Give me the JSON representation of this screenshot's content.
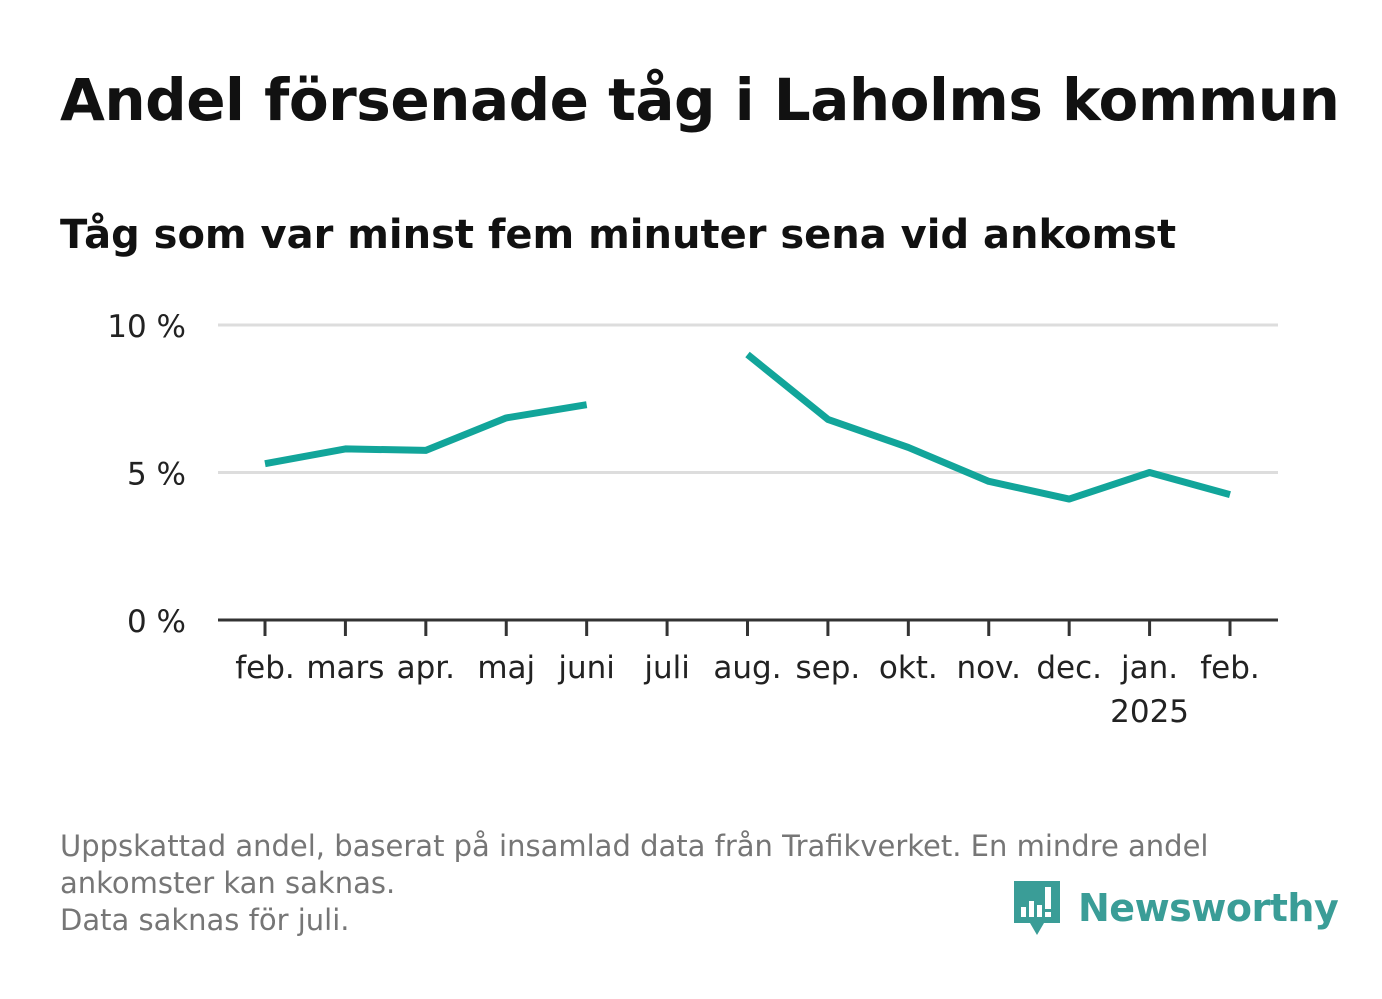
{
  "header": {
    "title": "Andel försenade tåg i Laholms kommun",
    "subtitle": "Tåg som var minst fem minuter sena vid ankomst"
  },
  "chart_data": {
    "type": "line",
    "categories": [
      "feb.",
      "mars",
      "apr.",
      "maj",
      "juni",
      "juli",
      "aug.",
      "sep.",
      "okt.",
      "nov.",
      "dec.",
      "jan.",
      "feb."
    ],
    "category_sublabels": [
      "",
      "",
      "",
      "",
      "",
      "",
      "",
      "",
      "",
      "",
      "",
      "2025",
      ""
    ],
    "series": [
      {
        "values": [
          5.3,
          5.8,
          5.75,
          6.85,
          7.3,
          null,
          9.0,
          6.8,
          5.85,
          4.7,
          4.1,
          5.0,
          4.25
        ]
      }
    ],
    "yticks": [
      0,
      5,
      10
    ],
    "ytick_labels": [
      "0 %",
      "5 %",
      "10 %"
    ],
    "ylim": [
      0,
      10
    ],
    "grid": true,
    "colors": {
      "line": "#12a59a",
      "grid": "#dddddd",
      "axis": "#333333"
    }
  },
  "footer": {
    "line1": "Uppskattad andel, baserat på insamlad data från Trafikverket. En mindre andel",
    "line2": "ankomster kan saknas.",
    "line3": "Data saknas för juli."
  },
  "brand": {
    "name": "Newsworthy",
    "icon": "newsworthy-logo-icon",
    "color": "#3a9d97"
  }
}
